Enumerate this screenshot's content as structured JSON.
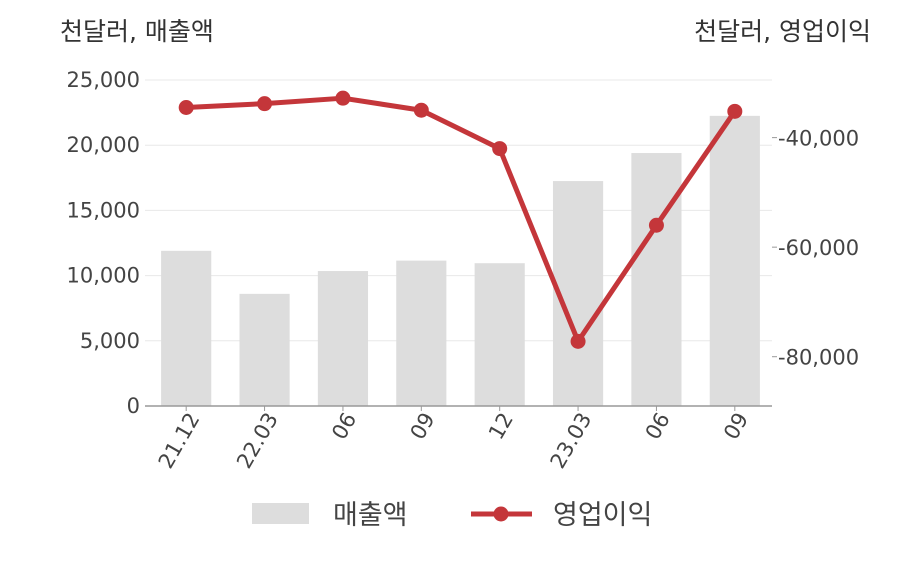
{
  "chart_data": {
    "type": "bar+line",
    "left_axis_title": "천달러, 매출액",
    "right_axis_title": "천달러, 영업이익",
    "categories": [
      "21.12",
      "22.03",
      "06",
      "09",
      "12",
      "23.03",
      "06",
      "09"
    ],
    "series": [
      {
        "name": "매출액",
        "kind": "bar",
        "axis": "left",
        "color": "#dddddd",
        "values": [
          11900,
          8600,
          10350,
          11150,
          10950,
          17250,
          19400,
          22250
        ]
      },
      {
        "name": "영업이익",
        "kind": "line",
        "axis": "right",
        "color": "#c4363a",
        "values": [
          -34500,
          -33800,
          -32800,
          -35000,
          -42000,
          -77200,
          -56000,
          -35200
        ]
      }
    ],
    "left_axis": {
      "min": 0,
      "max": 25000,
      "ticks": [
        0,
        5000,
        10000,
        15000,
        20000,
        25000
      ],
      "tick_labels": [
        "0",
        "5,000",
        "10,000",
        "15,000",
        "20,000",
        "25,000"
      ]
    },
    "right_axis": {
      "min": -89000,
      "max": -29480,
      "ticks": [
        -80000,
        -60000,
        -40000
      ],
      "tick_labels": [
        "-80,000",
        "-60,000",
        "-40,000"
      ]
    },
    "grid": true,
    "legend_position": "bottom"
  }
}
